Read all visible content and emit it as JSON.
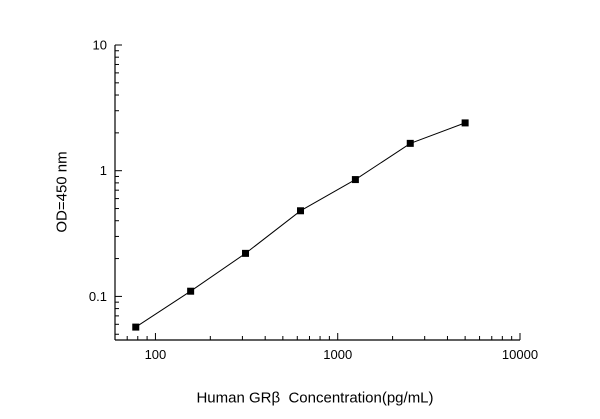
{
  "chart_data": {
    "type": "scatter",
    "x": [
      78,
      156,
      312,
      625,
      1250,
      2500,
      5000
    ],
    "y": [
      0.057,
      0.11,
      0.22,
      0.48,
      0.85,
      1.65,
      2.4
    ],
    "title": "",
    "xlabel": "Human GRβ  Concentration(pg/mL)",
    "ylabel": "OD=450 nm",
    "xscale": "log",
    "yscale": "log",
    "xlim": [
      60,
      10000
    ],
    "ylim": [
      0.045,
      10
    ],
    "x_major_ticks": [
      100,
      1000,
      10000
    ],
    "x_tick_labels": [
      "100",
      "1000",
      "10000"
    ],
    "y_major_ticks": [
      0.1,
      1,
      10
    ],
    "y_tick_labels": [
      "0.1",
      "1",
      "10"
    ],
    "grid": false,
    "legend": "none",
    "marker": "square",
    "marker_color": "#000000",
    "line_color": "#000000",
    "axis_color": "#000000",
    "background_color": "#ffffff"
  }
}
